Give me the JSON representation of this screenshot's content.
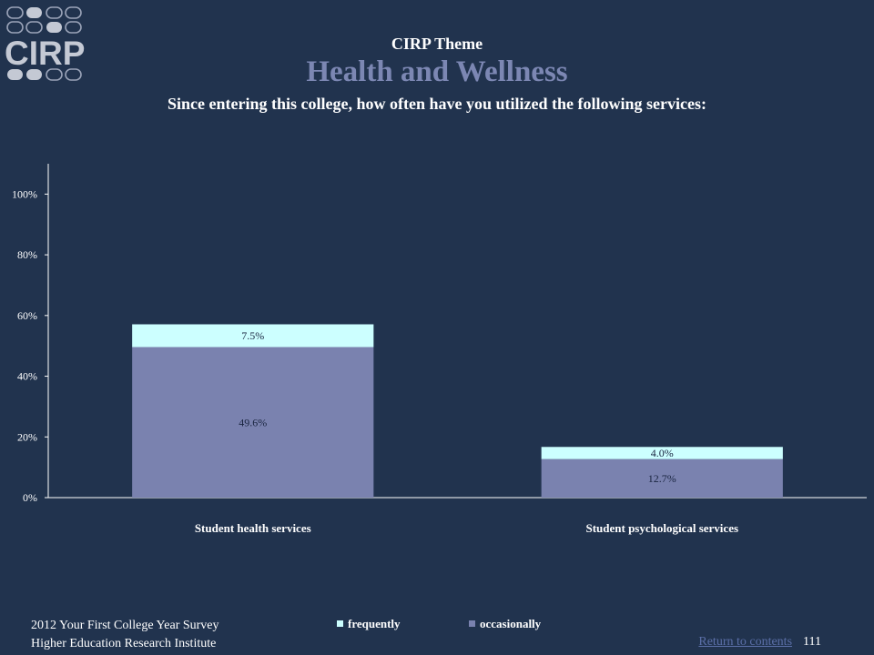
{
  "logo": {
    "text": "CIRP"
  },
  "header": {
    "theme_label": "CIRP Theme",
    "headline": "Health and Wellness",
    "question": "Since entering this college, how often have you utilized the following services:"
  },
  "chart_data": {
    "type": "bar",
    "stacked": true,
    "categories": [
      "Student health services",
      "Student psychological  services"
    ],
    "series": [
      {
        "name": "occasionally",
        "values": [
          49.6,
          12.7
        ],
        "labels": [
          "49.6%",
          "12.7%"
        ],
        "color": "#7a82af"
      },
      {
        "name": "frequently",
        "values": [
          7.5,
          4.0
        ],
        "labels": [
          "7.5%",
          "4.0%"
        ],
        "color": "#ccffff"
      }
    ],
    "ylim": [
      0,
      110
    ],
    "yticks": [
      0,
      20,
      40,
      60,
      80,
      100
    ],
    "ytick_labels": [
      "0%",
      "20%",
      "40%",
      "60%",
      "80%",
      "100%"
    ],
    "legend_order": [
      "frequently",
      "occasionally"
    ],
    "legend_placement": "bottom",
    "grid": false
  },
  "footer": {
    "survey": "2012 Your First College Year Survey",
    "institute": "Higher Education Research Institute",
    "return_link": "Return to contents",
    "page_number": "111"
  }
}
